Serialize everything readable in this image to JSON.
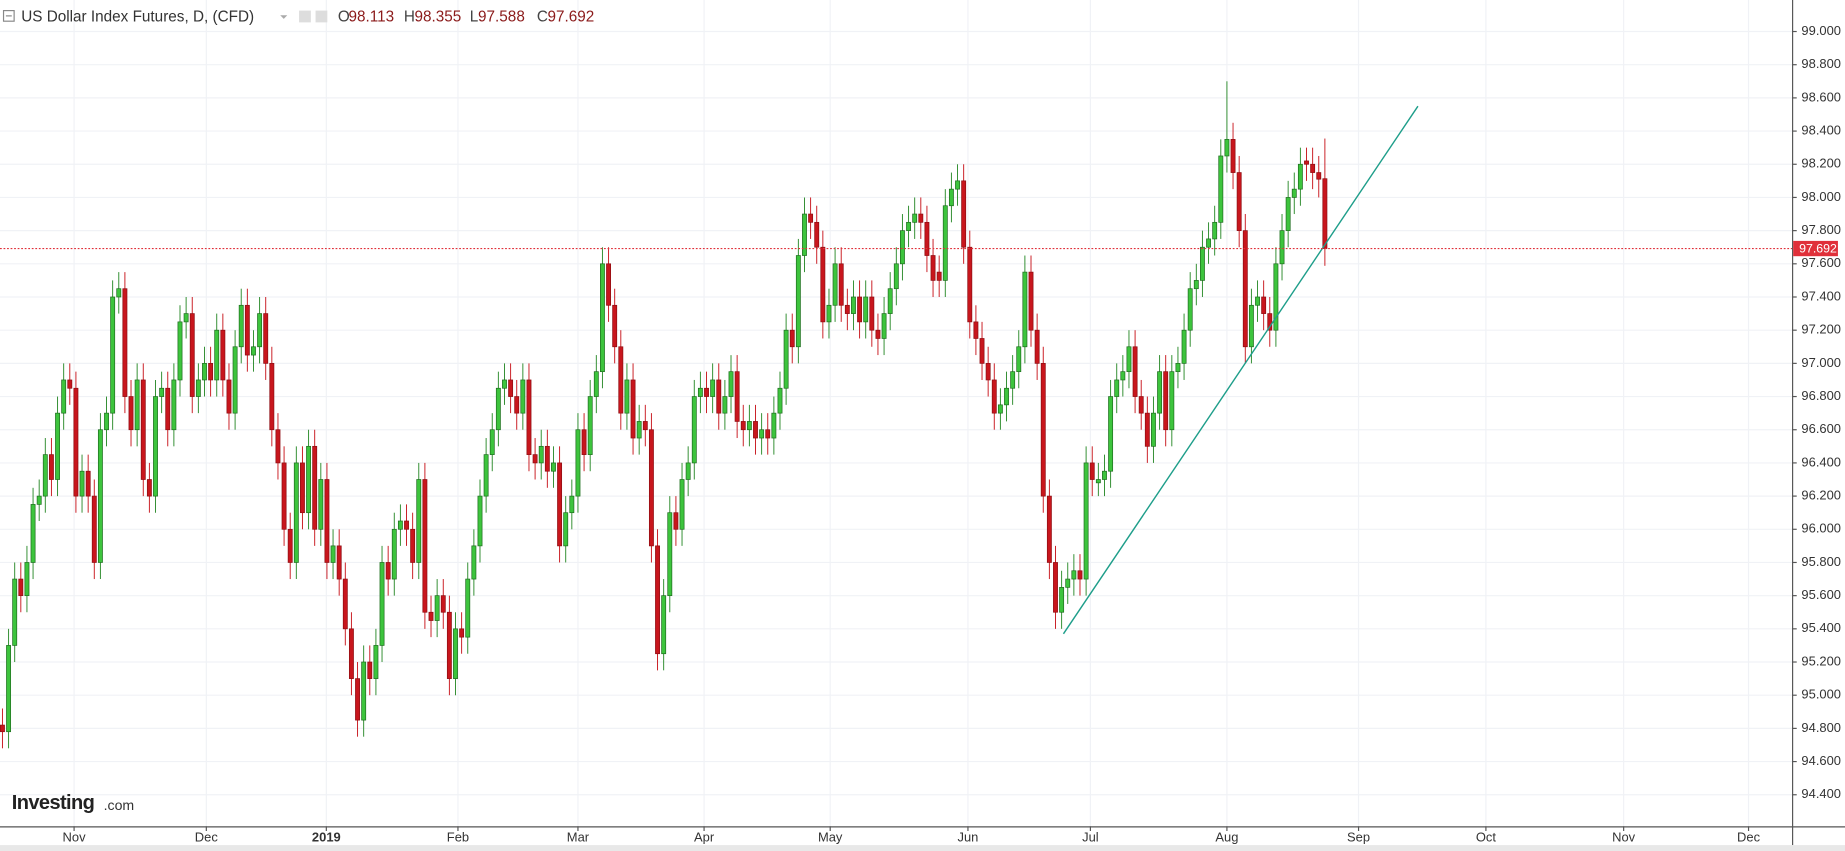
{
  "chart_data": {
    "type": "candlestick",
    "title": "US Dollar Index Futures, D, (CFD)",
    "ohlc_labels": [
      "O",
      "H",
      "L",
      "C"
    ],
    "logo": [
      "Investing",
      ".com"
    ],
    "up_color": "#3dc43d",
    "down_color": "#c8161d",
    "price_line_color": "#e0303a",
    "trendline_color": "#1e9e8a",
    "grid": true,
    "xlim": [
      -0.4,
      292.3
    ],
    "ylim": [
      94.21,
      99.19
    ],
    "xticks": [
      {
        "value": 11.7,
        "label": "Nov"
      },
      {
        "value": 33.3,
        "label": "Dec"
      },
      2019,
      {
        "value": 74.4,
        "label": "Feb"
      },
      {
        "value": 94.0,
        "label": "Mar"
      },
      {
        "value": 114.6,
        "label": "Apr"
      },
      {
        "value": 135.2,
        "label": "May"
      },
      {
        "value": 157.7,
        "label": "Jun"
      },
      {
        "value": 177.7,
        "label": "Jul"
      },
      {
        "value": 200.0,
        "label": "Aug"
      },
      {
        "value": 221.5,
        "label": "Sep"
      },
      {
        "value": 242.3,
        "label": "Oct"
      },
      {
        "value": 264.8,
        "label": "Nov"
      },
      {
        "value": 285.2,
        "label": "Dec"
      }
    ],
    "xtick_2019_position": 52.9,
    "yticks": [
      {
        "value": 94.4,
        "label": "94.400"
      },
      {
        "value": 94.6,
        "label": "94.600"
      },
      {
        "value": 94.8,
        "label": "94.800"
      },
      {
        "value": 95.0,
        "label": "95.000"
      },
      {
        "value": 95.2,
        "label": "95.200"
      },
      {
        "value": 95.4,
        "label": "95.400"
      },
      {
        "value": 95.6,
        "label": "95.600"
      },
      {
        "value": 95.8,
        "label": "95.800"
      },
      {
        "value": 96.0,
        "label": "96.000"
      },
      {
        "value": 96.2,
        "label": "96.200"
      },
      {
        "value": 96.4,
        "label": "96.400"
      },
      {
        "value": 96.6,
        "label": "96.600"
      },
      {
        "value": 96.8,
        "label": "96.800"
      },
      {
        "value": 97.0,
        "label": "97.000"
      },
      {
        "value": 97.2,
        "label": "97.200"
      },
      {
        "value": 97.4,
        "label": "97.400"
      },
      {
        "value": 97.6,
        "label": "97.600"
      },
      {
        "value": 97.8,
        "label": "97.800"
      },
      {
        "value": 98.0,
        "label": "98.000"
      },
      {
        "value": 98.2,
        "label": "98.200"
      },
      {
        "value": 98.4,
        "label": "98.400"
      },
      {
        "value": 98.6,
        "label": "98.600"
      },
      {
        "value": 98.8,
        "label": "98.800"
      },
      {
        "value": 99.0,
        "label": "99.000"
      }
    ],
    "trendline": {
      "x": [
        173.3,
        231.2
      ],
      "y": [
        95.37,
        98.55
      ]
    },
    "candles": [
      [
        94.82,
        94.92,
        94.68,
        94.78
      ],
      [
        94.78,
        95.4,
        94.68,
        95.3
      ],
      [
        95.3,
        95.8,
        95.2,
        95.7
      ],
      [
        95.7,
        95.8,
        95.5,
        95.6
      ],
      [
        95.6,
        95.9,
        95.5,
        95.8
      ],
      [
        95.8,
        96.25,
        95.7,
        96.15
      ],
      [
        96.15,
        96.3,
        96.05,
        96.2
      ],
      [
        96.2,
        96.55,
        96.1,
        96.45
      ],
      [
        96.45,
        96.55,
        96.2,
        96.3
      ],
      [
        96.3,
        96.8,
        96.2,
        96.7
      ],
      [
        96.7,
        97.0,
        96.6,
        96.9
      ],
      [
        96.9,
        97.0,
        96.75,
        96.85
      ],
      [
        96.85,
        96.95,
        96.1,
        96.2
      ],
      [
        96.2,
        96.45,
        96.1,
        96.35
      ],
      [
        96.35,
        96.45,
        96.1,
        96.2
      ],
      [
        96.2,
        96.3,
        95.7,
        95.8
      ],
      [
        95.8,
        96.7,
        95.7,
        96.6
      ],
      [
        96.6,
        96.8,
        96.5,
        96.7
      ],
      [
        96.7,
        97.5,
        96.6,
        97.4
      ],
      [
        97.4,
        97.55,
        97.3,
        97.45
      ],
      [
        97.45,
        97.55,
        96.7,
        96.8
      ],
      [
        96.8,
        96.9,
        96.5,
        96.6
      ],
      [
        96.6,
        97.0,
        96.5,
        96.9
      ],
      [
        96.9,
        97.0,
        96.2,
        96.3
      ],
      [
        96.3,
        96.4,
        96.1,
        96.2
      ],
      [
        96.2,
        96.9,
        96.1,
        96.8
      ],
      [
        96.8,
        96.95,
        96.7,
        96.85
      ],
      [
        96.85,
        96.95,
        96.5,
        96.6
      ],
      [
        96.6,
        97.0,
        96.5,
        96.9
      ],
      [
        96.9,
        97.35,
        96.8,
        97.25
      ],
      [
        97.25,
        97.4,
        97.15,
        97.3
      ],
      [
        97.3,
        97.4,
        96.7,
        96.8
      ],
      [
        96.8,
        97.0,
        96.7,
        96.9
      ],
      [
        96.9,
        97.1,
        96.8,
        97.0
      ],
      [
        97.0,
        97.1,
        96.8,
        96.9
      ],
      [
        96.9,
        97.3,
        96.8,
        97.2
      ],
      [
        97.2,
        97.3,
        96.8,
        96.9
      ],
      [
        96.9,
        97.0,
        96.6,
        96.7
      ],
      [
        96.7,
        97.2,
        96.6,
        97.1
      ],
      [
        97.1,
        97.45,
        97.0,
        97.35
      ],
      [
        97.35,
        97.45,
        96.95,
        97.05
      ],
      [
        97.05,
        97.2,
        96.95,
        97.1
      ],
      [
        97.1,
        97.4,
        97.0,
        97.3
      ],
      [
        97.3,
        97.4,
        96.9,
        97.0
      ],
      [
        97.0,
        97.1,
        96.5,
        96.6
      ],
      [
        96.6,
        96.7,
        96.3,
        96.4
      ],
      [
        96.4,
        96.5,
        95.9,
        96.0
      ],
      [
        96.0,
        96.1,
        95.7,
        95.8
      ],
      [
        95.8,
        96.5,
        95.7,
        96.4
      ],
      [
        96.4,
        96.5,
        96.0,
        96.1
      ],
      [
        96.1,
        96.6,
        96.0,
        96.5
      ],
      [
        96.5,
        96.6,
        95.9,
        96.0
      ],
      [
        96.0,
        96.4,
        95.9,
        96.3
      ],
      [
        96.3,
        96.4,
        95.7,
        95.8
      ],
      [
        95.8,
        96.0,
        95.7,
        95.9
      ],
      [
        95.9,
        96.0,
        95.6,
        95.7
      ],
      [
        95.7,
        95.8,
        95.3,
        95.4
      ],
      [
        95.4,
        95.5,
        95.0,
        95.1
      ],
      [
        95.1,
        95.2,
        94.75,
        94.85
      ],
      [
        94.85,
        95.3,
        94.75,
        95.2
      ],
      [
        95.2,
        95.3,
        95.0,
        95.1
      ],
      [
        95.1,
        95.4,
        95.0,
        95.3
      ],
      [
        95.3,
        95.9,
        95.2,
        95.8
      ],
      [
        95.8,
        95.9,
        95.6,
        95.7
      ],
      [
        95.7,
        96.1,
        95.6,
        96.0
      ],
      [
        96.0,
        96.15,
        95.9,
        96.05
      ],
      [
        96.05,
        96.15,
        95.9,
        96.0
      ],
      [
        96.0,
        96.1,
        95.7,
        95.8
      ],
      [
        95.8,
        96.4,
        95.7,
        96.3
      ],
      [
        96.3,
        96.4,
        95.4,
        95.5
      ],
      [
        95.5,
        95.6,
        95.35,
        95.45
      ],
      [
        95.45,
        95.7,
        95.35,
        95.6
      ],
      [
        95.6,
        95.7,
        95.4,
        95.5
      ],
      [
        95.5,
        95.6,
        95.0,
        95.1
      ],
      [
        95.1,
        95.5,
        95.0,
        95.4
      ],
      [
        95.4,
        95.5,
        95.25,
        95.35
      ],
      [
        95.35,
        95.8,
        95.25,
        95.7
      ],
      [
        95.7,
        96.0,
        95.6,
        95.9
      ],
      [
        95.9,
        96.3,
        95.8,
        96.2
      ],
      [
        96.2,
        96.55,
        96.1,
        96.45
      ],
      [
        96.45,
        96.7,
        96.35,
        96.6
      ],
      [
        96.6,
        96.95,
        96.5,
        96.85
      ],
      [
        96.85,
        97.0,
        96.75,
        96.9
      ],
      [
        96.9,
        97.0,
        96.7,
        96.8
      ],
      [
        96.8,
        96.9,
        96.6,
        96.7
      ],
      [
        96.7,
        97.0,
        96.6,
        96.9
      ],
      [
        96.9,
        97.0,
        96.35,
        96.45
      ],
      [
        96.45,
        96.55,
        96.3,
        96.4
      ],
      [
        96.4,
        96.6,
        96.3,
        96.5
      ],
      [
        96.5,
        96.6,
        96.25,
        96.35
      ],
      [
        96.35,
        96.5,
        96.25,
        96.4
      ],
      [
        96.4,
        96.5,
        95.8,
        95.9
      ],
      [
        95.9,
        96.2,
        95.8,
        96.1
      ],
      [
        96.1,
        96.3,
        96.0,
        96.2
      ],
      [
        96.2,
        96.7,
        96.1,
        96.6
      ],
      [
        96.6,
        96.7,
        96.35,
        96.45
      ],
      [
        96.45,
        96.9,
        96.35,
        96.8
      ],
      [
        96.8,
        97.05,
        96.7,
        96.95
      ],
      [
        96.95,
        97.7,
        96.85,
        97.6
      ],
      [
        97.6,
        97.7,
        97.25,
        97.35
      ],
      [
        97.35,
        97.45,
        97.0,
        97.1
      ],
      [
        97.1,
        97.2,
        96.6,
        96.7
      ],
      [
        96.7,
        97.0,
        96.6,
        96.9
      ],
      [
        96.9,
        97.0,
        96.45,
        96.55
      ],
      [
        96.55,
        96.75,
        96.45,
        96.65
      ],
      [
        96.65,
        96.75,
        96.5,
        96.6
      ],
      [
        96.6,
        96.7,
        95.8,
        95.9
      ],
      [
        95.9,
        96.0,
        95.15,
        95.25
      ],
      [
        95.25,
        95.7,
        95.15,
        95.6
      ],
      [
        95.6,
        96.2,
        95.5,
        96.1
      ],
      [
        96.1,
        96.2,
        95.9,
        96.0
      ],
      [
        96.0,
        96.4,
        95.9,
        96.3
      ],
      [
        96.3,
        96.5,
        96.2,
        96.4
      ],
      [
        96.4,
        96.9,
        96.3,
        96.8
      ],
      [
        96.8,
        96.95,
        96.7,
        96.85
      ],
      [
        96.85,
        96.95,
        96.7,
        96.8
      ],
      [
        96.8,
        97.0,
        96.7,
        96.9
      ],
      [
        96.9,
        97.0,
        96.6,
        96.7
      ],
      [
        96.7,
        96.9,
        96.6,
        96.8
      ],
      [
        96.8,
        97.05,
        96.7,
        96.95
      ],
      [
        96.95,
        97.05,
        96.55,
        96.65
      ],
      [
        96.65,
        96.75,
        96.5,
        96.6
      ],
      [
        96.6,
        96.75,
        96.5,
        96.65
      ],
      [
        96.65,
        96.75,
        96.45,
        96.55
      ],
      [
        96.55,
        96.7,
        96.45,
        96.6
      ],
      [
        96.6,
        96.7,
        96.45,
        96.55
      ],
      [
        96.55,
        96.8,
        96.45,
        96.7
      ],
      [
        96.7,
        96.95,
        96.6,
        96.85
      ],
      [
        96.85,
        97.3,
        96.75,
        97.2
      ],
      [
        97.2,
        97.3,
        97.0,
        97.1
      ],
      [
        97.1,
        97.75,
        97.0,
        97.65
      ],
      [
        97.65,
        98.0,
        97.55,
        97.9
      ],
      [
        97.9,
        98.0,
        97.75,
        97.85
      ],
      [
        97.85,
        97.95,
        97.6,
        97.7
      ],
      [
        97.7,
        97.8,
        97.15,
        97.25
      ],
      [
        97.25,
        97.45,
        97.15,
        97.35
      ],
      [
        97.35,
        97.7,
        97.25,
        97.6
      ],
      [
        97.6,
        97.7,
        97.25,
        97.35
      ],
      [
        97.35,
        97.45,
        97.2,
        97.3
      ],
      [
        97.3,
        97.5,
        97.2,
        97.4
      ],
      [
        97.4,
        97.5,
        97.15,
        97.25
      ],
      [
        97.25,
        97.5,
        97.15,
        97.4
      ],
      [
        97.4,
        97.5,
        97.1,
        97.2
      ],
      [
        97.2,
        97.3,
        97.05,
        97.15
      ],
      [
        97.15,
        97.4,
        97.05,
        97.3
      ],
      [
        97.3,
        97.55,
        97.2,
        97.45
      ],
      [
        97.45,
        97.7,
        97.35,
        97.6
      ],
      [
        97.6,
        97.9,
        97.5,
        97.8
      ],
      [
        97.8,
        97.95,
        97.7,
        97.85
      ],
      [
        97.85,
        98.0,
        97.75,
        97.9
      ],
      [
        97.9,
        98.0,
        97.75,
        97.85
      ],
      [
        97.85,
        97.95,
        97.55,
        97.65
      ],
      [
        97.65,
        97.75,
        97.4,
        97.5
      ],
      [
        97.55,
        97.65,
        97.4,
        97.5
      ],
      [
        97.5,
        98.05,
        97.4,
        97.95
      ],
      [
        97.95,
        98.15,
        97.85,
        98.05
      ],
      [
        98.05,
        98.2,
        97.95,
        98.1
      ],
      [
        98.1,
        98.2,
        97.6,
        97.7
      ],
      [
        97.7,
        97.8,
        97.15,
        97.25
      ],
      [
        97.25,
        97.35,
        97.05,
        97.15
      ],
      [
        97.15,
        97.25,
        96.9,
        97.0
      ],
      [
        97.0,
        97.1,
        96.8,
        96.9
      ],
      [
        96.9,
        97.0,
        96.6,
        96.7
      ],
      [
        96.7,
        96.85,
        96.6,
        96.75
      ],
      [
        96.75,
        96.95,
        96.65,
        96.85
      ],
      [
        96.85,
        97.05,
        96.75,
        96.95
      ],
      [
        96.95,
        97.2,
        96.85,
        97.1
      ],
      [
        97.1,
        97.65,
        97.0,
        97.55
      ],
      [
        97.55,
        97.65,
        97.1,
        97.2
      ],
      [
        97.2,
        97.3,
        96.9,
        97.0
      ],
      [
        97.0,
        97.1,
        96.1,
        96.2
      ],
      [
        96.2,
        96.3,
        95.7,
        95.8
      ],
      [
        95.8,
        95.9,
        95.4,
        95.5
      ],
      [
        95.5,
        95.75,
        95.4,
        95.65
      ],
      [
        95.65,
        95.8,
        95.55,
        95.7
      ],
      [
        95.7,
        95.85,
        95.6,
        95.75
      ],
      [
        95.75,
        95.85,
        95.6,
        95.7
      ],
      [
        95.7,
        96.5,
        95.6,
        96.4
      ],
      [
        96.4,
        96.5,
        96.2,
        96.3
      ],
      [
        96.28,
        96.4,
        96.2,
        96.3
      ],
      [
        96.3,
        96.45,
        96.2,
        96.35
      ],
      [
        96.35,
        96.9,
        96.25,
        96.8
      ],
      [
        96.8,
        97.0,
        96.7,
        96.9
      ],
      [
        96.9,
        97.05,
        96.8,
        96.95
      ],
      [
        96.95,
        97.2,
        96.85,
        97.1
      ],
      [
        97.1,
        97.2,
        96.7,
        96.8
      ],
      [
        96.8,
        96.9,
        96.6,
        96.7
      ],
      [
        96.7,
        96.8,
        96.4,
        96.5
      ],
      [
        96.5,
        96.8,
        96.4,
        96.7
      ],
      [
        96.7,
        97.05,
        96.6,
        96.95
      ],
      [
        96.95,
        97.05,
        96.5,
        96.6
      ],
      [
        96.6,
        97.05,
        96.5,
        96.95
      ],
      [
        96.95,
        97.1,
        96.85,
        97.0
      ],
      [
        97.0,
        97.3,
        96.9,
        97.2
      ],
      [
        97.2,
        97.55,
        97.1,
        97.45
      ],
      [
        97.45,
        97.6,
        97.35,
        97.5
      ],
      [
        97.5,
        97.8,
        97.4,
        97.7
      ],
      [
        97.7,
        97.85,
        97.6,
        97.75
      ],
      [
        97.75,
        97.95,
        97.65,
        97.85
      ],
      [
        97.85,
        98.35,
        97.75,
        98.25
      ],
      [
        98.25,
        98.7,
        98.15,
        98.35
      ],
      [
        98.35,
        98.45,
        98.05,
        98.15
      ],
      [
        98.15,
        98.25,
        97.7,
        97.8
      ],
      [
        97.8,
        97.9,
        97.0,
        97.1
      ],
      [
        97.1,
        97.45,
        97.0,
        97.35
      ],
      [
        97.35,
        97.5,
        97.25,
        97.4
      ],
      [
        97.4,
        97.5,
        97.2,
        97.3
      ],
      [
        97.3,
        97.4,
        97.1,
        97.2
      ],
      [
        97.2,
        97.7,
        97.1,
        97.6
      ],
      [
        97.6,
        97.9,
        97.5,
        97.8
      ],
      [
        97.8,
        98.1,
        97.7,
        98.0
      ],
      [
        98.0,
        98.15,
        97.9,
        98.05
      ],
      [
        98.05,
        98.3,
        97.95,
        98.2
      ],
      [
        98.22,
        98.3,
        98.1,
        98.2
      ],
      [
        98.2,
        98.3,
        98.05,
        98.15
      ],
      [
        98.15,
        98.25,
        98.0,
        98.11
      ],
      [
        98.113,
        98.355,
        97.588,
        97.692
      ]
    ]
  }
}
